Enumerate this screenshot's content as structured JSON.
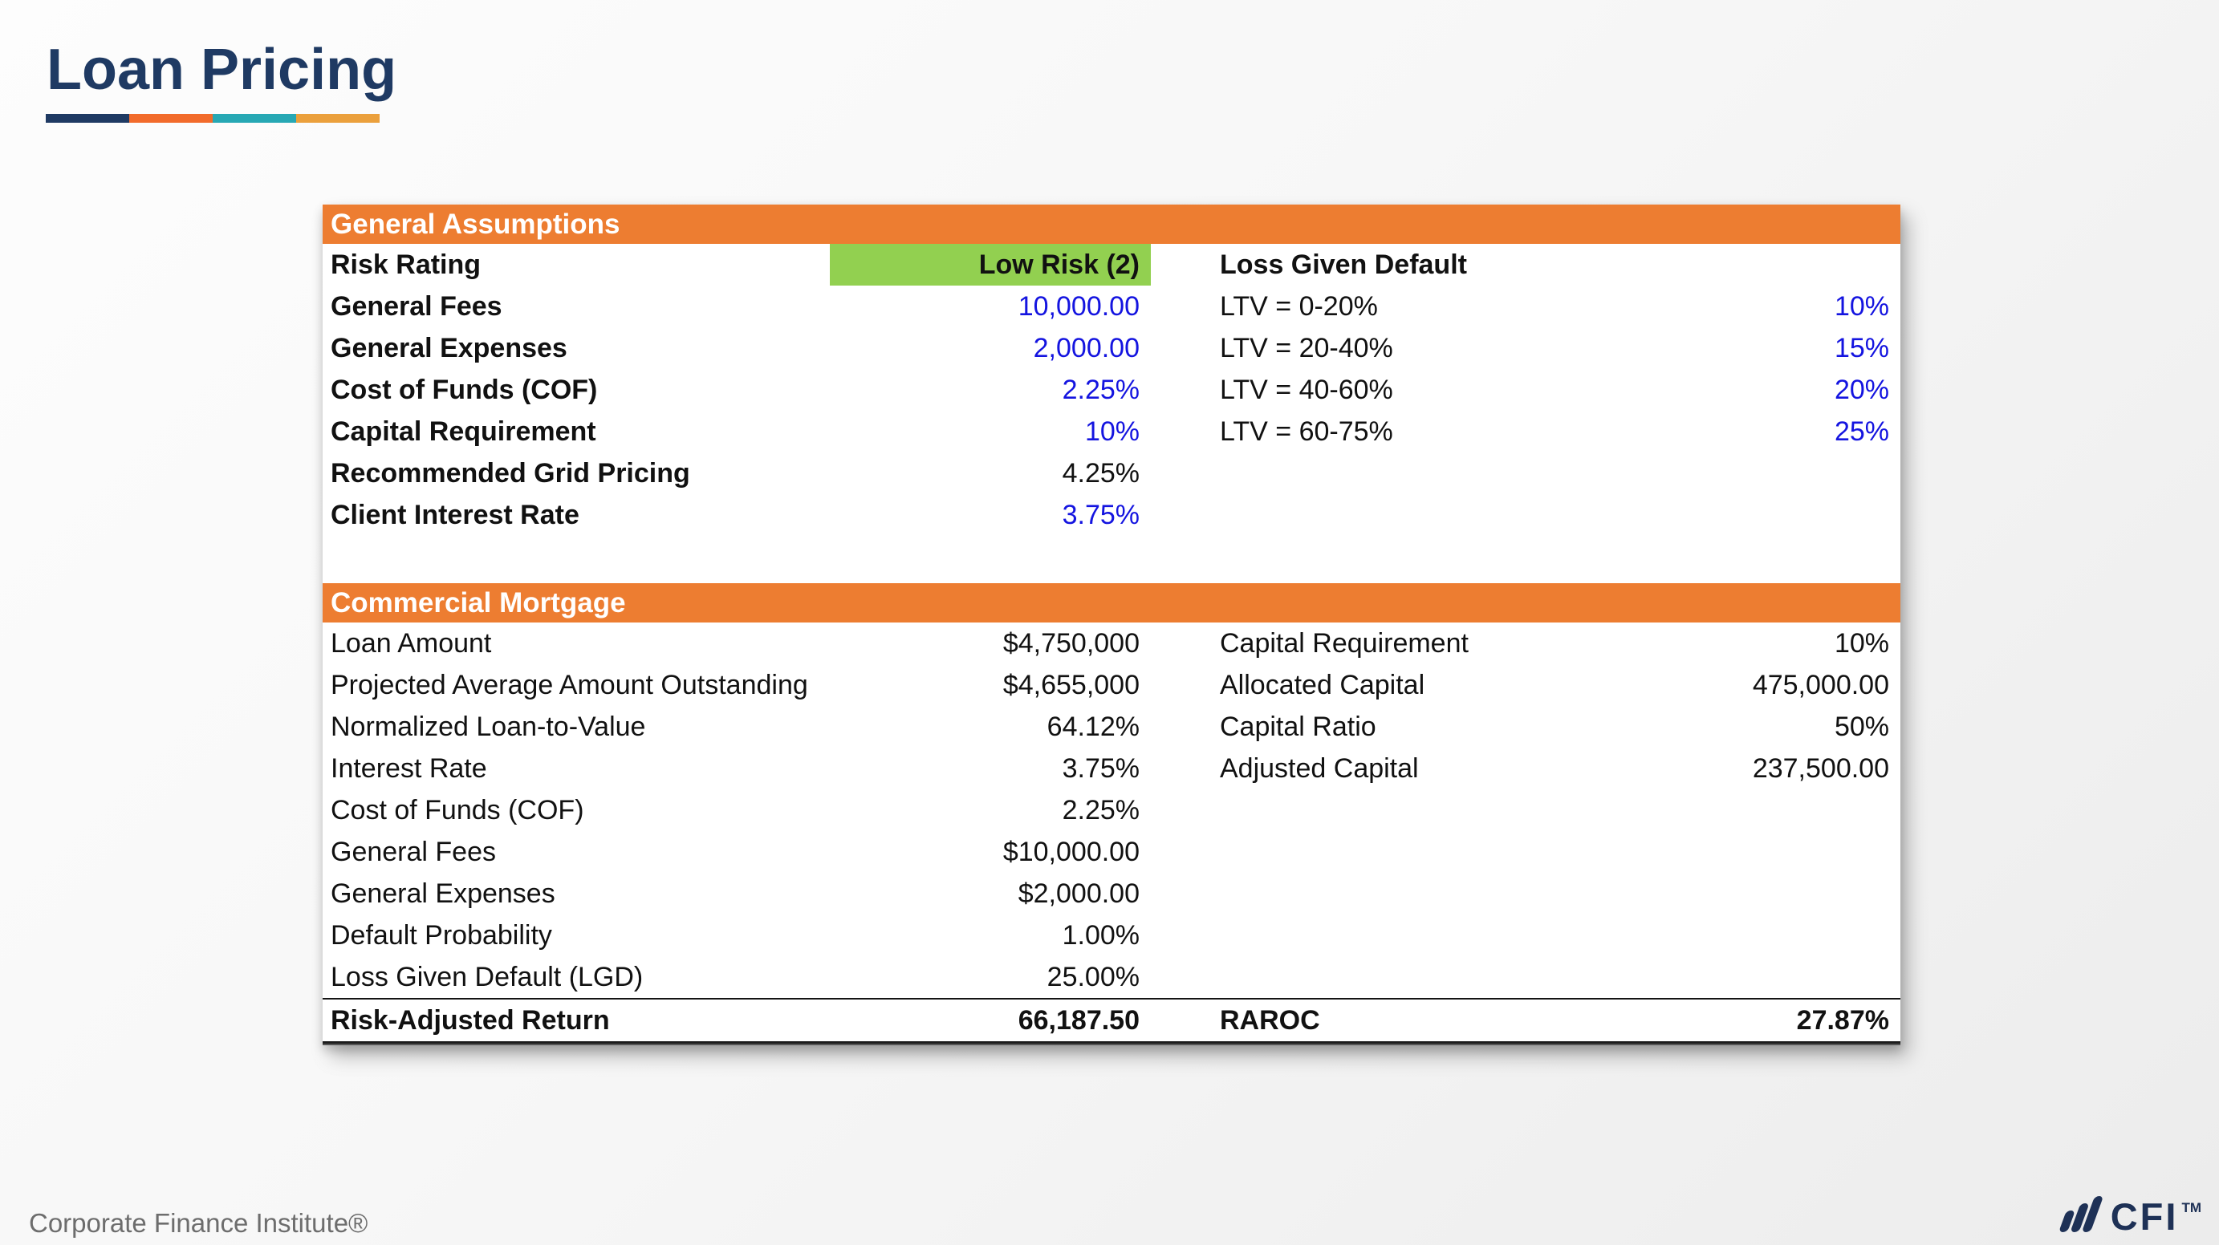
{
  "page": {
    "title": "Loan Pricing"
  },
  "colors": {
    "navy": "#1f3a63",
    "orange": "#ed7d31",
    "teal": "#27a8b4",
    "amber": "#eba03c",
    "green": "#92d050",
    "blue": "#1414e0",
    "logo_navy": "#1e3156"
  },
  "accent_bar": {
    "colors": [
      "#1f3a63",
      "#f26b2b",
      "#27a8b4",
      "#eba03c"
    ]
  },
  "table": {
    "sections": [
      {
        "header": "General Assumptions",
        "rows": [
          {
            "left": {
              "label": "Risk Rating",
              "bold": true,
              "value": "Low Risk (2)",
              "value_bold": true,
              "color": "black",
              "highlight": true
            },
            "right": {
              "label": "Loss Given Default",
              "bold": true,
              "value": "",
              "color": "black"
            }
          },
          {
            "left": {
              "label": "General Fees",
              "bold": true,
              "value": "10,000.00",
              "color": "blue"
            },
            "right": {
              "label": "LTV = 0-20%",
              "value": "10%",
              "color": "blue"
            }
          },
          {
            "left": {
              "label": "General Expenses",
              "bold": true,
              "value": "2,000.00",
              "color": "blue"
            },
            "right": {
              "label": "LTV = 20-40%",
              "value": "15%",
              "color": "blue"
            }
          },
          {
            "left": {
              "label": "Cost of Funds (COF)",
              "bold": true,
              "value": "2.25%",
              "color": "blue"
            },
            "right": {
              "label": "LTV = 40-60%",
              "value": "20%",
              "color": "blue"
            }
          },
          {
            "left": {
              "label": "Capital Requirement",
              "bold": true,
              "value": "10%",
              "color": "blue"
            },
            "right": {
              "label": "LTV = 60-75%",
              "value": "25%",
              "color": "blue"
            }
          },
          {
            "left": {
              "label": "Recommended Grid Pricing",
              "bold": true,
              "value": "4.25%",
              "color": "black"
            },
            "right": null
          },
          {
            "left": {
              "label": "Client Interest Rate",
              "bold": true,
              "value": "3.75%",
              "color": "blue"
            },
            "right": null
          }
        ]
      },
      {
        "header": "Commercial Mortgage",
        "rows": [
          {
            "left": {
              "label": "Loan Amount",
              "value": "$4,750,000",
              "color": "black"
            },
            "right": {
              "label": "Capital Requirement",
              "value": "10%",
              "color": "black"
            }
          },
          {
            "left": {
              "label": "Projected Average Amount Outstanding",
              "value": "$4,655,000",
              "color": "black"
            },
            "right": {
              "label": "Allocated Capital",
              "value": "475,000.00",
              "color": "black"
            }
          },
          {
            "left": {
              "label": "Normalized Loan-to-Value",
              "value": "64.12%",
              "color": "black"
            },
            "right": {
              "label": "Capital Ratio",
              "value": "50%",
              "color": "black"
            }
          },
          {
            "left": {
              "label": "Interest Rate",
              "value": "3.75%",
              "color": "black"
            },
            "right": {
              "label": "Adjusted Capital",
              "value": "237,500.00",
              "color": "black"
            }
          },
          {
            "left": {
              "label": "Cost of Funds (COF)",
              "value": "2.25%",
              "color": "black"
            },
            "right": null
          },
          {
            "left": {
              "label": "General Fees",
              "value": "$10,000.00",
              "color": "black"
            },
            "right": null
          },
          {
            "left": {
              "label": "General Expenses",
              "value": "$2,000.00",
              "color": "black"
            },
            "right": null
          },
          {
            "left": {
              "label": "Default Probability",
              "value": "1.00%",
              "color": "black"
            },
            "right": null
          },
          {
            "left": {
              "label": "Loss Given Default (LGD)",
              "value": "25.00%",
              "color": "black"
            },
            "right": null
          }
        ]
      }
    ],
    "totals": {
      "left_label": "Risk-Adjusted Return",
      "left_value": "66,187.50",
      "right_label": "RAROC",
      "right_value": "27.87%"
    }
  },
  "footer": {
    "brand": "Corporate Finance Institute®",
    "logo_text": "CFI",
    "logo_tm": "TM"
  }
}
